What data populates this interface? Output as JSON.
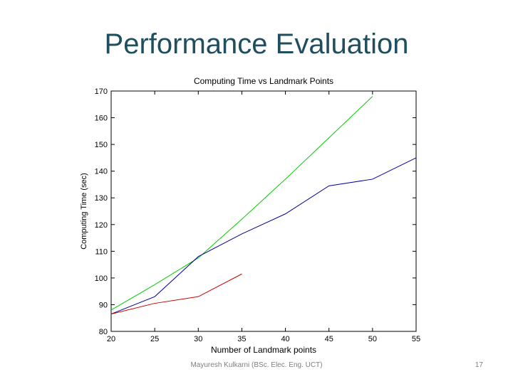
{
  "slide": {
    "title": "Performance Evaluation",
    "footer": "Mayuresh Kulkarni (BSc. Elec. Eng. UCT)",
    "page_number": "17"
  },
  "chart_data": {
    "type": "line",
    "title": "Computing Time vs Landmark Points",
    "xlabel": "Number of Landmark points",
    "ylabel": "Computing Time (sec)",
    "xlim": [
      20,
      55
    ],
    "ylim": [
      80,
      170
    ],
    "xticks": [
      20,
      25,
      30,
      35,
      40,
      45,
      50,
      55
    ],
    "yticks": [
      80,
      90,
      100,
      110,
      120,
      130,
      140,
      150,
      160,
      170
    ],
    "grid": false,
    "series": [
      {
        "color": "#00cc00",
        "x": [
          20,
          25,
          30,
          35,
          40,
          45,
          50
        ],
        "y": [
          88,
          97.5,
          107.5,
          122,
          137,
          152.5,
          168
        ]
      },
      {
        "color": "#000099",
        "x": [
          20,
          25,
          30,
          35,
          40,
          45,
          50,
          55
        ],
        "y": [
          86.5,
          93,
          108,
          116.5,
          124,
          134.5,
          137,
          145
        ]
      },
      {
        "color": "#cc0000",
        "x": [
          20,
          25,
          30,
          35
        ],
        "y": [
          86.5,
          90.5,
          93,
          101.5
        ]
      }
    ]
  }
}
